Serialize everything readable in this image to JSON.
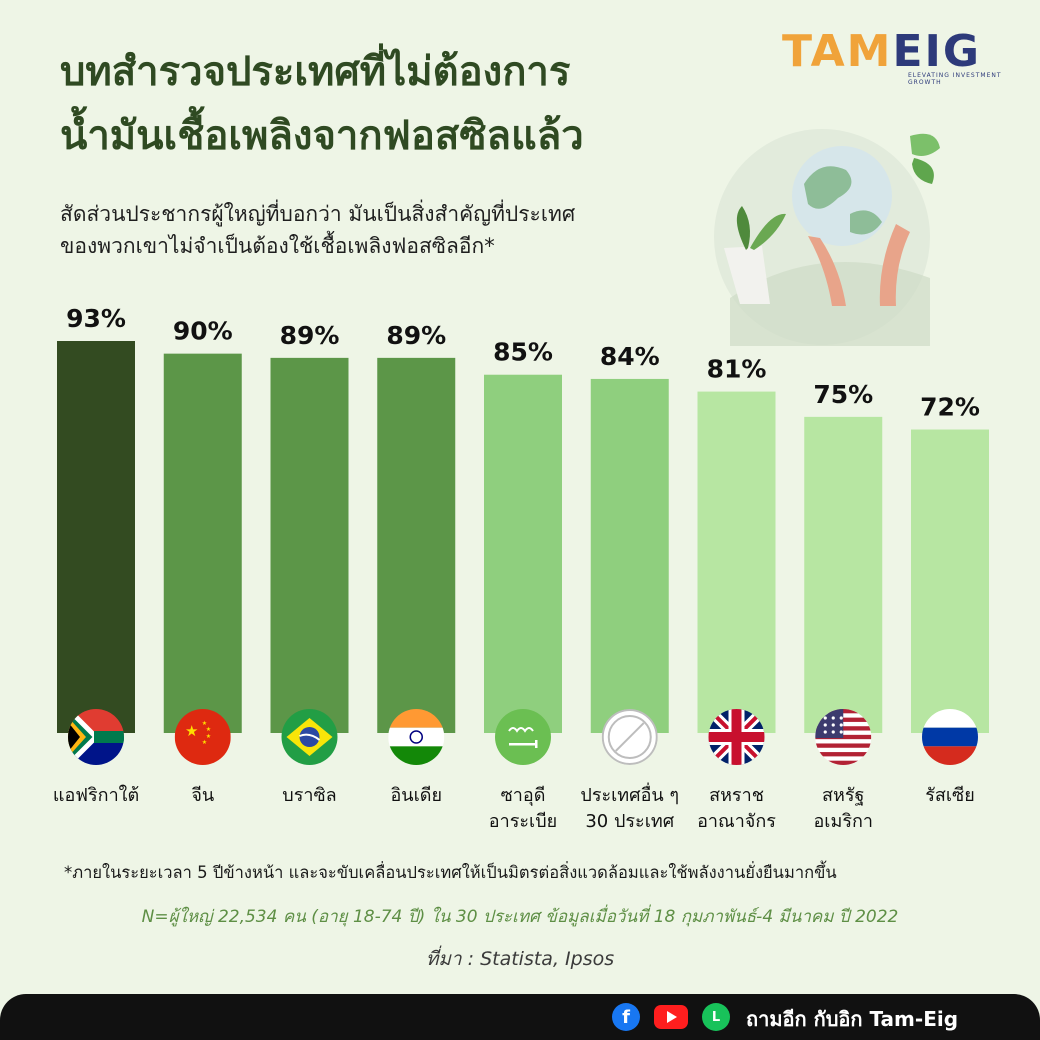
{
  "header": {
    "title_line1": "บทสำรวจประเทศที่ไม่ต้องการ",
    "title_line2": "น้ำมันเชื้อเพลิงจากฟอสซิลแล้ว",
    "subtitle_line1": "สัดส่วนประชากรผู้ใหญ่ที่บอกว่า มันเป็นสิ่งสำคัญที่ประเทศ",
    "subtitle_line2": "ของพวกเขาไม่จำเป็นต้องใช้เชื้อเพลิงฟอสซิลอีก*"
  },
  "logo": {
    "part1": "TAM",
    "part2": "EIG",
    "tagline": "ELEVATING INVESTMENT GROWTH"
  },
  "chart_data": {
    "type": "bar",
    "categories": [
      [
        "แอฟริกาใต้"
      ],
      [
        "จีน"
      ],
      [
        "บราซิล"
      ],
      [
        "อินเดีย"
      ],
      [
        "ซาอุดี",
        "อาระเบีย"
      ],
      [
        "ประเทศอื่น ๆ",
        "30 ประเทศ"
      ],
      [
        "สหราช",
        "อาณาจักร"
      ],
      [
        "สหรัฐ",
        "อเมริกา"
      ],
      [
        "รัสเซีย"
      ]
    ],
    "values": [
      93,
      90,
      89,
      89,
      85,
      84,
      81,
      75,
      72
    ],
    "value_suffix": "%",
    "flags": [
      "south-africa-flag",
      "china-flag",
      "brazil-flag",
      "india-flag",
      "saudi-arabia-flag",
      "other-countries-icon",
      "uk-flag",
      "usa-flag",
      "russia-flag"
    ],
    "bar_colors": [
      "#334b21",
      "#5c9648",
      "#5c9648",
      "#5c9648",
      "#8fcf7e",
      "#8fcf7e",
      "#b7e6a2",
      "#b7e6a2",
      "#b7e6a2"
    ],
    "ylim": [
      0,
      93
    ]
  },
  "footer": {
    "footnote": "*ภายในระยะเวลา 5 ปีข้างหน้า และจะขับเคลื่อนประเทศให้เป็นมิตรต่อสิ่งแวดล้อมและใช้พลังงานยั่งยืนมากขึ้น",
    "sample": "N=ผู้ใหญ่ 22,534 คน (อายุ 18-74 ปี) ใน 30 ประเทศ ข้อมูลเมื่อวันที่ 18 กุมภาพันธ์-4 มีนาคม ปี 2022",
    "source": "ที่มา : Statista, Ipsos"
  },
  "bottom_bar": {
    "icons": [
      "facebook-icon",
      "youtube-icon",
      "line-icon"
    ],
    "brand": "ถามอีก กับอิก Tam-Eig"
  }
}
